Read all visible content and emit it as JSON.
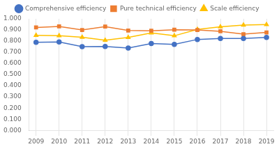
{
  "chart_data": {
    "type": "line",
    "x": [
      2009,
      2010,
      2011,
      2012,
      2013,
      2014,
      2015,
      2016,
      2017,
      2018,
      2019
    ],
    "series": [
      {
        "name": "Comprehensive efficiency",
        "color": "#4472C4",
        "marker": "circle",
        "values": [
          0.79,
          0.792,
          0.75,
          0.752,
          0.738,
          0.778,
          0.77,
          0.815,
          0.823,
          0.823,
          0.833
        ]
      },
      {
        "name": "Pure technical efficiency",
        "color": "#ED7D31",
        "marker": "square",
        "values": [
          0.922,
          0.932,
          0.9,
          0.93,
          0.895,
          0.893,
          0.902,
          0.9,
          0.888,
          0.862,
          0.878
        ]
      },
      {
        "name": "Scale efficiency",
        "color": "#FFC000",
        "marker": "triangle",
        "values": [
          0.852,
          0.849,
          0.835,
          0.808,
          0.833,
          0.873,
          0.848,
          0.905,
          0.928,
          0.944,
          0.948
        ]
      }
    ],
    "xlim": [
      2008.7,
      2019.3
    ],
    "xticks": [
      2009,
      2010,
      2011,
      2012,
      2013,
      2014,
      2015,
      2016,
      2017,
      2018,
      2019
    ],
    "ylim": [
      0,
      1
    ],
    "yticks": [
      {
        "value": 0,
        "label": "0.000"
      },
      {
        "value": 0.1,
        "label": "0.100"
      },
      {
        "value": 0.2,
        "label": "0.200"
      },
      {
        "value": 0.3,
        "label": "0.300"
      },
      {
        "value": 0.4,
        "label": "0.400"
      },
      {
        "value": 0.5,
        "label": "0.500"
      },
      {
        "value": 0.6,
        "label": "0.600"
      },
      {
        "value": 0.7,
        "label": "0.700"
      },
      {
        "value": 0.8,
        "label": "0.800"
      },
      {
        "value": 0.9,
        "label": "0.900"
      },
      {
        "value": 1,
        "label": "1.000"
      }
    ],
    "grid": "x",
    "legend": "top"
  }
}
